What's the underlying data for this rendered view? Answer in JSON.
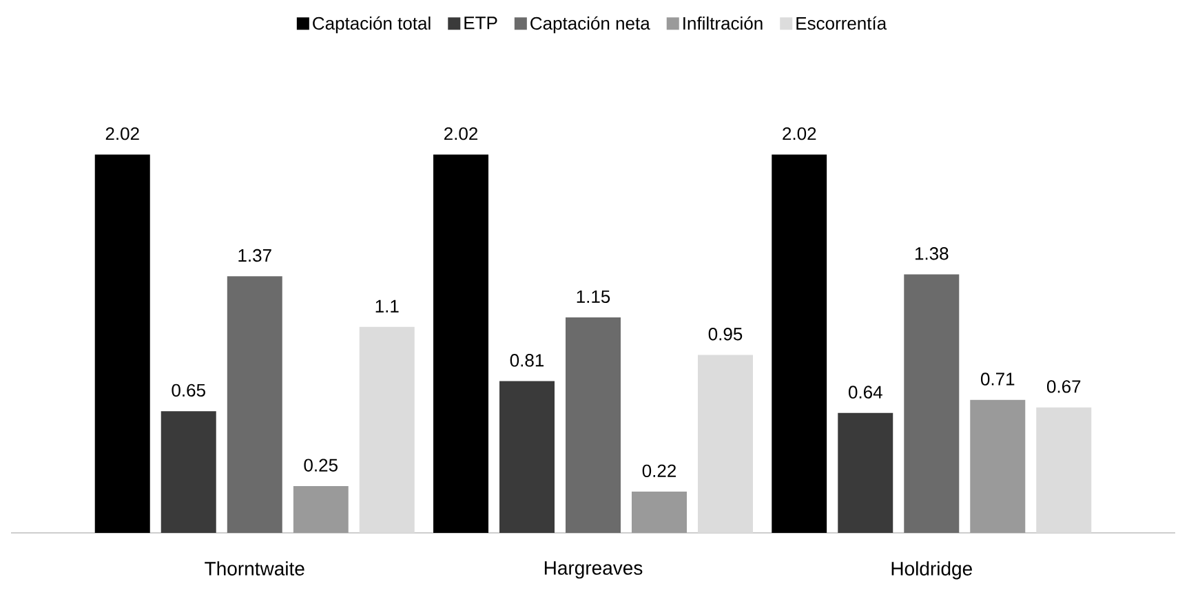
{
  "chart_data": {
    "type": "bar",
    "categories": [
      "Thorntwaite",
      "Hargreaves",
      "Holdridge"
    ],
    "series": [
      {
        "name": "Captación total",
        "color": "#000000",
        "values": [
          2.02,
          2.02,
          2.02
        ]
      },
      {
        "name": "ETP",
        "color": "#3a3a3a",
        "values": [
          0.65,
          0.81,
          0.64
        ]
      },
      {
        "name": "Captación neta",
        "color": "#6b6b6b",
        "values": [
          1.37,
          1.15,
          1.38
        ]
      },
      {
        "name": "Infiltración",
        "color": "#9a9a9a",
        "values": [
          0.25,
          0.22,
          0.71
        ]
      },
      {
        "name": "Escorrentía",
        "color": "#dcdcdc",
        "values": [
          1.1,
          0.95,
          0.67
        ]
      }
    ],
    "data_labels": true,
    "legend": "top",
    "grid": false
  }
}
